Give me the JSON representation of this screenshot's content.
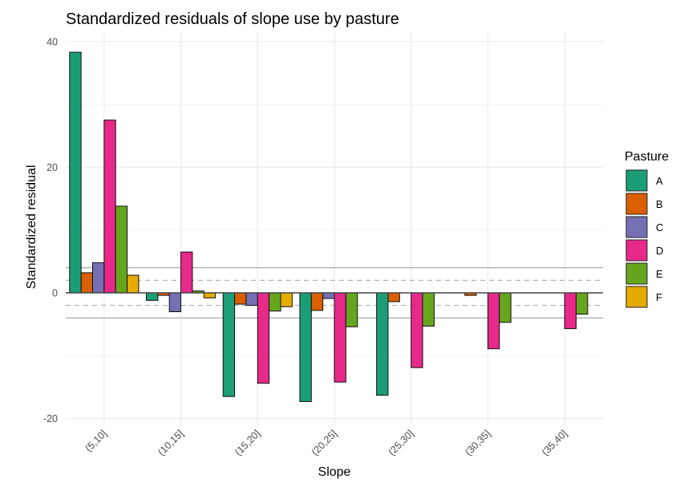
{
  "chart_data": {
    "type": "bar",
    "title": "Standardized residuals of slope use by pasture",
    "xlabel": "Slope",
    "ylabel": "Standardized residual",
    "categories": [
      "(5,10]",
      "(10,15]",
      "(15,20]",
      "(20,25]",
      "(25,30]",
      "(30,35]",
      "(35,40]"
    ],
    "ylim": [
      -22,
      42
    ],
    "yticks": [
      -20,
      0,
      20,
      40
    ],
    "ytick_labels": [
      "-20",
      "0",
      "20",
      "40"
    ],
    "grid": true,
    "reference_lines": {
      "solid": [
        4,
        -4
      ],
      "dashed": [
        2,
        -2
      ],
      "zero": 0
    },
    "legend": {
      "title": "Pasture",
      "placement": "right"
    },
    "series": [
      {
        "name": "A",
        "color": "#1b9e77",
        "values": [
          38.3,
          -1.2,
          -16.5,
          -17.3,
          -16.3,
          null,
          null
        ]
      },
      {
        "name": "B",
        "color": "#d95f02",
        "values": [
          3.2,
          -0.4,
          -1.8,
          -2.8,
          -1.4,
          -0.4,
          null
        ]
      },
      {
        "name": "C",
        "color": "#7570b3",
        "values": [
          4.8,
          -3.0,
          -2.0,
          -0.9,
          null,
          null,
          null
        ]
      },
      {
        "name": "D",
        "color": "#e7298a",
        "values": [
          27.5,
          6.5,
          -14.4,
          -14.2,
          -11.9,
          -8.9,
          -5.7
        ]
      },
      {
        "name": "E",
        "color": "#66a61e",
        "values": [
          13.8,
          0.3,
          -2.9,
          -5.4,
          -5.3,
          -4.7,
          -3.4
        ]
      },
      {
        "name": "F",
        "color": "#e6ab02",
        "values": [
          2.8,
          -0.8,
          -2.2,
          null,
          null,
          null,
          null
        ]
      }
    ]
  }
}
